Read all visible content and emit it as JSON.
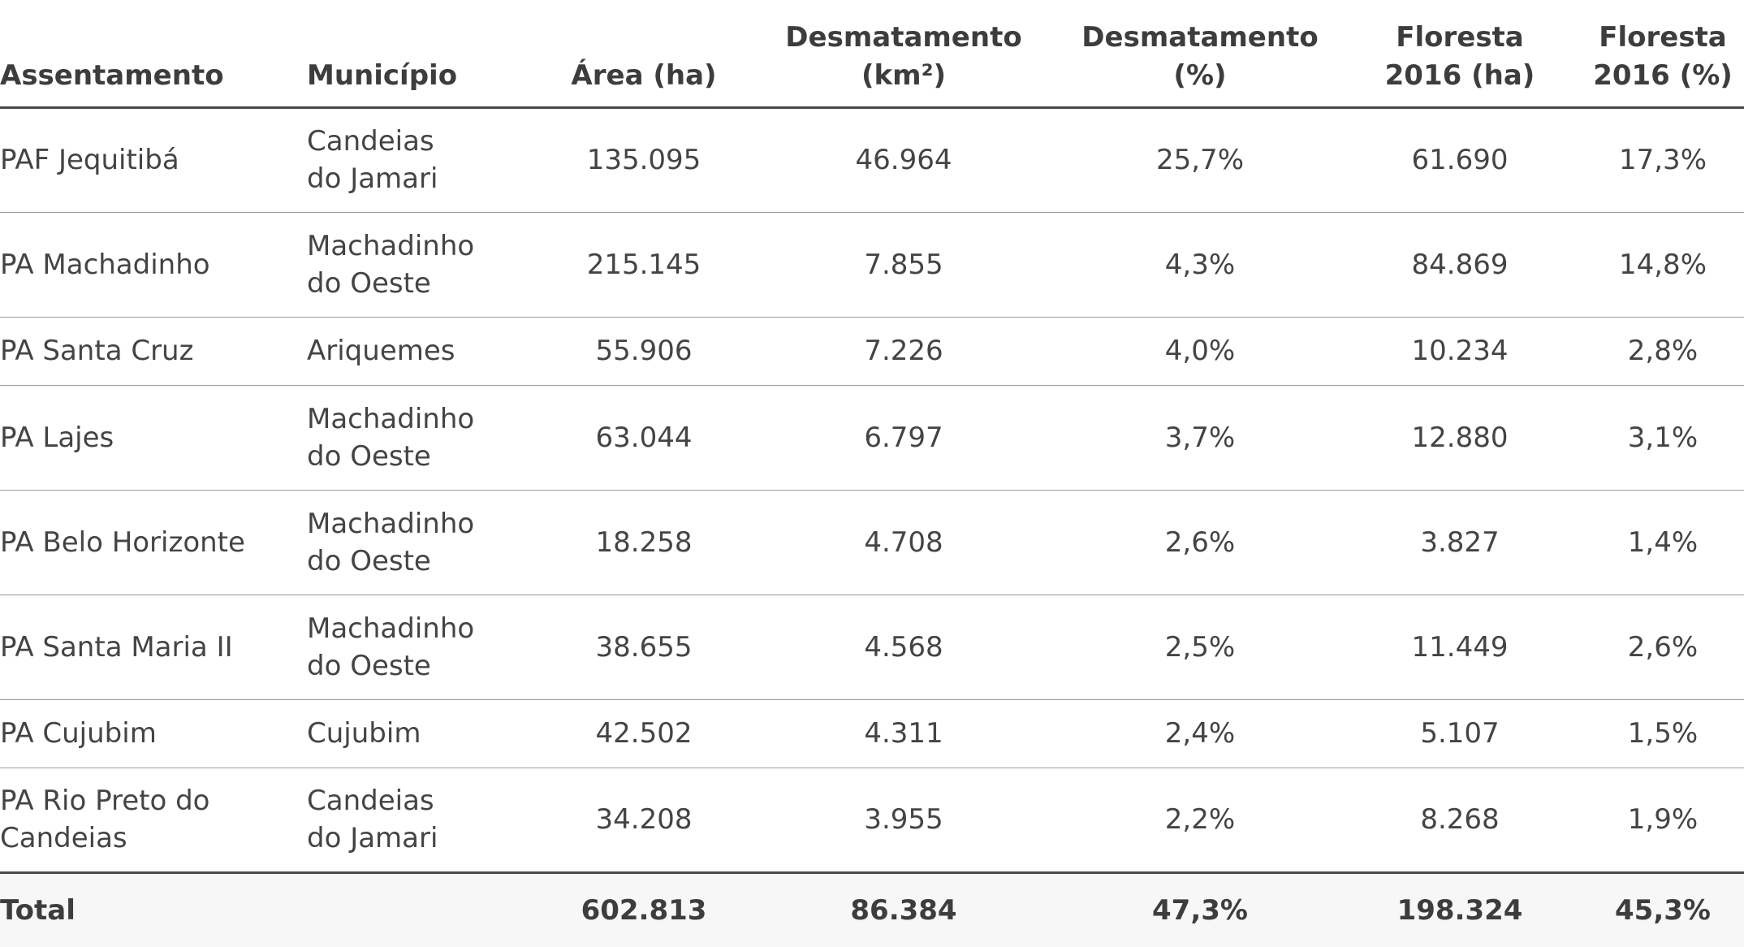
{
  "table": {
    "headers": {
      "assentamento": "Assentamento",
      "municipio": "Município",
      "area": "Área (ha)",
      "desmatamento_km2": "Desmatamento\n(km²)",
      "desmatamento_pct": "Desmatamento\n(%)",
      "floresta_ha": "Floresta\n2016 (ha)",
      "floresta_pct": "Floresta\n2016 (%)"
    },
    "rows": [
      {
        "assentamento": "PAF Jequitibá",
        "municipio": "Candeias\ndo Jamari",
        "area": "135.095",
        "desmatamento_km2": "46.964",
        "desmatamento_pct": "25,7%",
        "floresta_ha": "61.690",
        "floresta_pct": "17,3%"
      },
      {
        "assentamento": "PA Machadinho",
        "municipio": "Machadinho\ndo Oeste",
        "area": "215.145",
        "desmatamento_km2": "7.855",
        "desmatamento_pct": "4,3%",
        "floresta_ha": "84.869",
        "floresta_pct": "14,8%"
      },
      {
        "assentamento": "PA Santa Cruz",
        "municipio": "Ariquemes",
        "area": "55.906",
        "desmatamento_km2": "7.226",
        "desmatamento_pct": "4,0%",
        "floresta_ha": "10.234",
        "floresta_pct": "2,8%"
      },
      {
        "assentamento": "PA Lajes",
        "municipio": "Machadinho\ndo Oeste",
        "area": "63.044",
        "desmatamento_km2": "6.797",
        "desmatamento_pct": "3,7%",
        "floresta_ha": "12.880",
        "floresta_pct": "3,1%"
      },
      {
        "assentamento": "PA Belo Horizonte",
        "municipio": "Machadinho\ndo Oeste",
        "area": "18.258",
        "desmatamento_km2": "4.708",
        "desmatamento_pct": "2,6%",
        "floresta_ha": "3.827",
        "floresta_pct": "1,4%"
      },
      {
        "assentamento": "PA Santa Maria II",
        "municipio": "Machadinho\ndo Oeste",
        "area": "38.655",
        "desmatamento_km2": "4.568",
        "desmatamento_pct": "2,5%",
        "floresta_ha": "11.449",
        "floresta_pct": "2,6%"
      },
      {
        "assentamento": "PA Cujubim",
        "municipio": "Cujubim",
        "area": "42.502",
        "desmatamento_km2": "4.311",
        "desmatamento_pct": "2,4%",
        "floresta_ha": "5.107",
        "floresta_pct": "1,5%"
      },
      {
        "assentamento": "PA Rio Preto do\nCandeias",
        "municipio": "Candeias\ndo Jamari",
        "area": "34.208",
        "desmatamento_km2": "3.955",
        "desmatamento_pct": "2,2%",
        "floresta_ha": "8.268",
        "floresta_pct": "1,9%"
      }
    ],
    "total": {
      "label": "Total",
      "area": "602.813",
      "desmatamento_km2": "86.384",
      "desmatamento_pct": "47,3%",
      "floresta_ha": "198.324",
      "floresta_pct": "45,3%"
    }
  }
}
